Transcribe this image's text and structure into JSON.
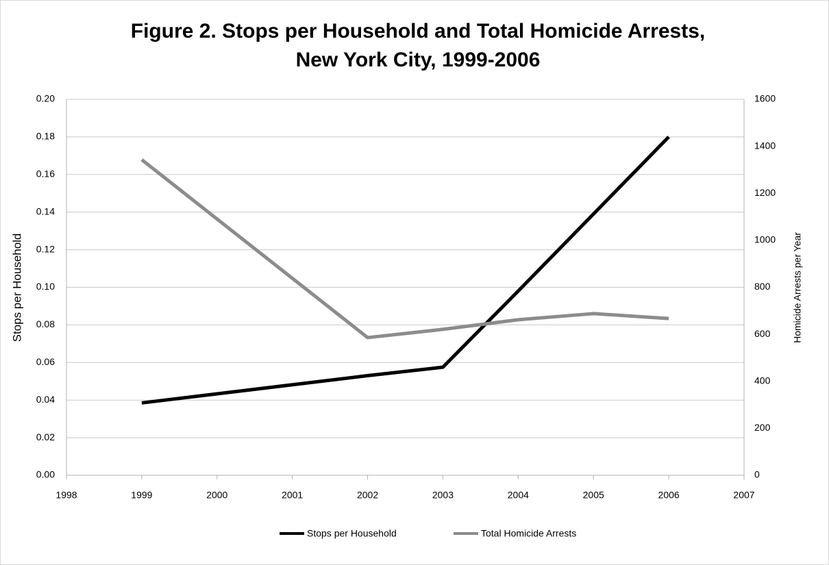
{
  "chart_data": {
    "type": "line",
    "title": [
      "Figure 2.  Stops per Household and Total Homicide Arrests,",
      "New York City, 1999-2006"
    ],
    "y_label": "Stops per Household",
    "y2_label": "Homicide Arrests per Year",
    "x": [
      1999,
      2002,
      2003,
      2004,
      2005,
      2006
    ],
    "series": [
      {
        "name": "Stops per Household",
        "color": "#000000",
        "values": [
          0.0385,
          0.053,
          0.0575,
          0.098,
          0.139,
          0.18
        ]
      },
      {
        "name": "Total Homicide Arrests",
        "color": "#8c8c8c",
        "axis": "y2",
        "values": [
          1343,
          586,
          621,
          662,
          688,
          667
        ]
      }
    ],
    "xlim": [
      1998,
      2007
    ],
    "xticks": [
      1998,
      1999,
      2000,
      2001,
      2002,
      2003,
      2004,
      2005,
      2006,
      2007
    ],
    "ylim": [
      0,
      0.2
    ],
    "yticks": [
      {
        "value": 0,
        "label": "0.00"
      },
      {
        "value": 0.02,
        "label": "0.02"
      },
      {
        "value": 0.04,
        "label": "0.04"
      },
      {
        "value": 0.06,
        "label": "0.06"
      },
      {
        "value": 0.08,
        "label": "0.08"
      },
      {
        "value": 0.1,
        "label": "0.10"
      },
      {
        "value": 0.12,
        "label": "0.12"
      },
      {
        "value": 0.14,
        "label": "0.14"
      },
      {
        "value": 0.16,
        "label": "0.16"
      },
      {
        "value": 0.18,
        "label": "0.18"
      },
      {
        "value": 0.2,
        "label": "0.20"
      }
    ],
    "y2lim": [
      0,
      1600
    ],
    "y2ticks": [
      0,
      200,
      400,
      600,
      800,
      1000,
      1200,
      1400,
      1600
    ],
    "grid": true,
    "legend": "bottom"
  }
}
